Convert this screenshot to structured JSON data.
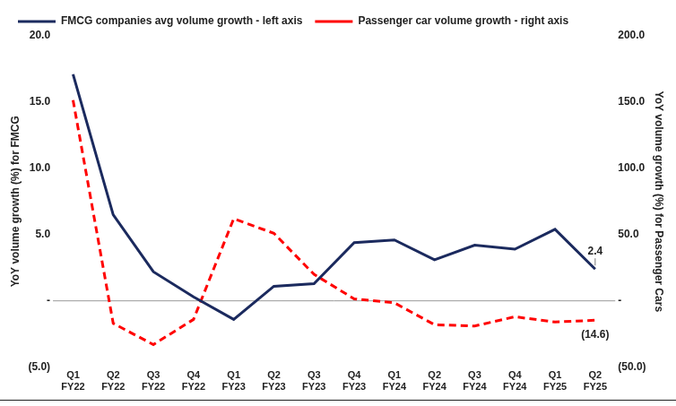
{
  "chart_data": {
    "type": "line",
    "categories": [
      "Q1 FY22",
      "Q2 FY22",
      "Q3 FY22",
      "Q4 FY22",
      "Q1 FY23",
      "Q2 FY23",
      "Q3 FY23",
      "Q4 FY23",
      "Q1 FY24",
      "Q2 FY24",
      "Q3 FY24",
      "Q4 FY24",
      "Q1 FY25",
      "Q2 FY25"
    ],
    "series": [
      {
        "name": "FMCG companies avg volume growth - left axis",
        "color": "#1b2a5e",
        "axis": "y",
        "line_style": "solid",
        "marker": "none",
        "values": [
          17.1,
          6.5,
          2.2,
          0.3,
          -1.4,
          1.1,
          1.3,
          4.4,
          4.6,
          3.1,
          4.2,
          3.9,
          5.4,
          2.4
        ]
      },
      {
        "name": "Passenger car volume growth - right axis",
        "color": "#ff0000",
        "axis": "y2",
        "line_style": "dashed",
        "marker": "none",
        "values": [
          151.5,
          -17,
          -33,
          -14,
          62,
          51,
          20,
          1.5,
          -1.5,
          -18,
          -19,
          -12,
          -16,
          -14.6
        ]
      }
    ],
    "y_label": "YoY volume growth (%) for FMCG",
    "y2_label": "YoY volume growth (%) for Passenger Cars",
    "ylim": [
      -5,
      20
    ],
    "yticks": [
      {
        "value": -5,
        "label": "(5.0)"
      },
      {
        "value": 0,
        "label": "-"
      },
      {
        "value": 5,
        "label": "5.0"
      },
      {
        "value": 10,
        "label": "10.0"
      },
      {
        "value": 15,
        "label": "15.0"
      },
      {
        "value": 20,
        "label": "20.0"
      }
    ],
    "y2lim": [
      -50,
      200
    ],
    "y2ticks": [
      {
        "value": -50,
        "label": "(50.0)"
      },
      {
        "value": 0,
        "label": "-"
      },
      {
        "value": 50,
        "label": "50.0"
      },
      {
        "value": 100,
        "label": "100.0"
      },
      {
        "value": 150,
        "label": "150.0"
      },
      {
        "value": 200,
        "label": "200.0"
      }
    ],
    "grid": false,
    "legend": "top",
    "annotations": [
      {
        "text": "2.4",
        "x": "Q2 FY25",
        "y": 2.4,
        "axis": "y"
      },
      {
        "text": "(14.6)",
        "x": "Q2 FY25",
        "y": -14.6,
        "axis": "y2"
      }
    ]
  }
}
